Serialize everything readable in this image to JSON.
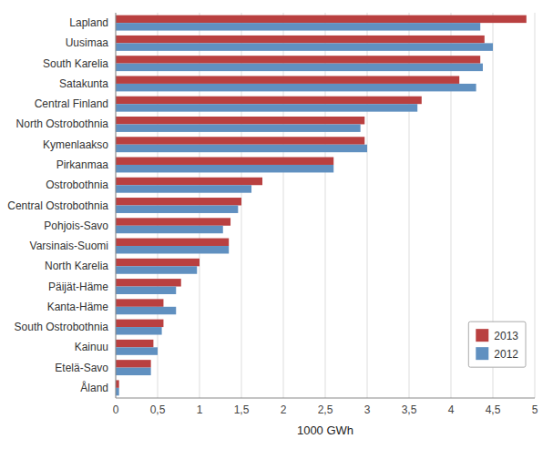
{
  "chart_data": {
    "type": "bar",
    "orientation": "horizontal",
    "categories": [
      "Lapland",
      "Uusimaa",
      "South Karelia",
      "Satakunta",
      "Central Finland",
      "North Ostrobothnia",
      "Kymenlaakso",
      "Pirkanmaa",
      "Ostrobothnia",
      "Central Ostrobothnia",
      "Pohjois-Savo",
      "Varsinais-Suomi",
      "North Karelia",
      "Päijät-Häme",
      "Kanta-Häme",
      "South Ostrobothnia",
      "Kainuu",
      "Etelä-Savo",
      "Åland"
    ],
    "series": [
      {
        "name": "2013",
        "color": "#b94040",
        "values": [
          4.9,
          4.4,
          4.35,
          4.1,
          3.65,
          2.97,
          2.97,
          2.6,
          1.75,
          1.5,
          1.37,
          1.35,
          1.0,
          0.78,
          0.57,
          0.57,
          0.45,
          0.42,
          0.04
        ]
      },
      {
        "name": "2012",
        "color": "#6090c0",
        "values": [
          4.35,
          4.5,
          4.38,
          4.3,
          3.6,
          2.92,
          3.0,
          2.6,
          1.62,
          1.46,
          1.28,
          1.35,
          0.97,
          0.72,
          0.72,
          0.55,
          0.5,
          0.42,
          0.04
        ]
      }
    ],
    "xlabel": "1000 GWh",
    "xlim": [
      0,
      5
    ],
    "xticks": [
      0,
      {
        "value": 0.5,
        "label": "0,5"
      },
      1,
      {
        "value": 1.5,
        "label": "1,5"
      },
      2,
      {
        "value": 2.5,
        "label": "2,5"
      },
      3,
      {
        "value": 3.5,
        "label": "3,5"
      },
      4,
      {
        "value": 4.5,
        "label": "4,5"
      },
      5
    ],
    "grid": true,
    "legend": "lower right"
  }
}
